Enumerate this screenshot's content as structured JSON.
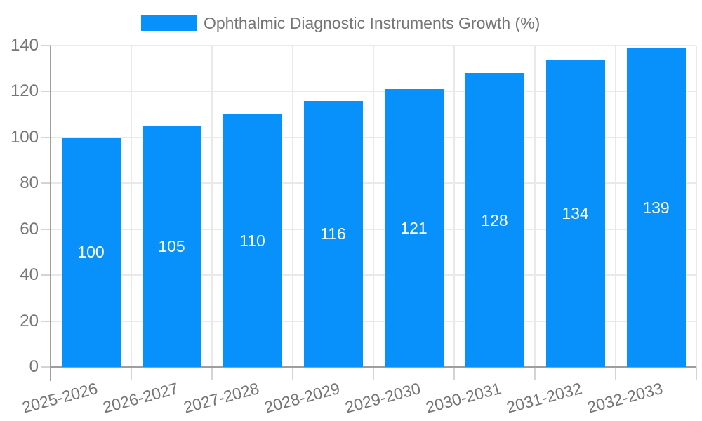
{
  "legend": {
    "label": "Ophthalmic Diagnostic Instruments Growth (%)",
    "swatch_color": "#0891fa"
  },
  "chart_data": {
    "type": "bar",
    "title": "Ophthalmic Diagnostic Instruments Growth (%)",
    "categories": [
      "2025-2026",
      "2026-2027",
      "2027-2028",
      "2028-2029",
      "2029-2030",
      "2030-2031",
      "2031-2032",
      "2032-2033"
    ],
    "values": [
      100,
      105,
      110,
      116,
      121,
      128,
      134,
      139
    ],
    "value_labels": [
      "100",
      "105",
      "110",
      "116",
      "121",
      "128",
      "134",
      "139"
    ],
    "yticks": [
      0,
      20,
      40,
      60,
      80,
      100,
      120,
      140
    ],
    "ylim": [
      0,
      140
    ],
    "xlabel": "",
    "ylabel": "",
    "grid": true,
    "legend_position": "top",
    "bar_color": "#0891fa",
    "value_label_color": "#ffffff",
    "axis_color": "#9e9e9e",
    "grid_color": "#e9e9e9",
    "tick_label_color": "#757575"
  }
}
